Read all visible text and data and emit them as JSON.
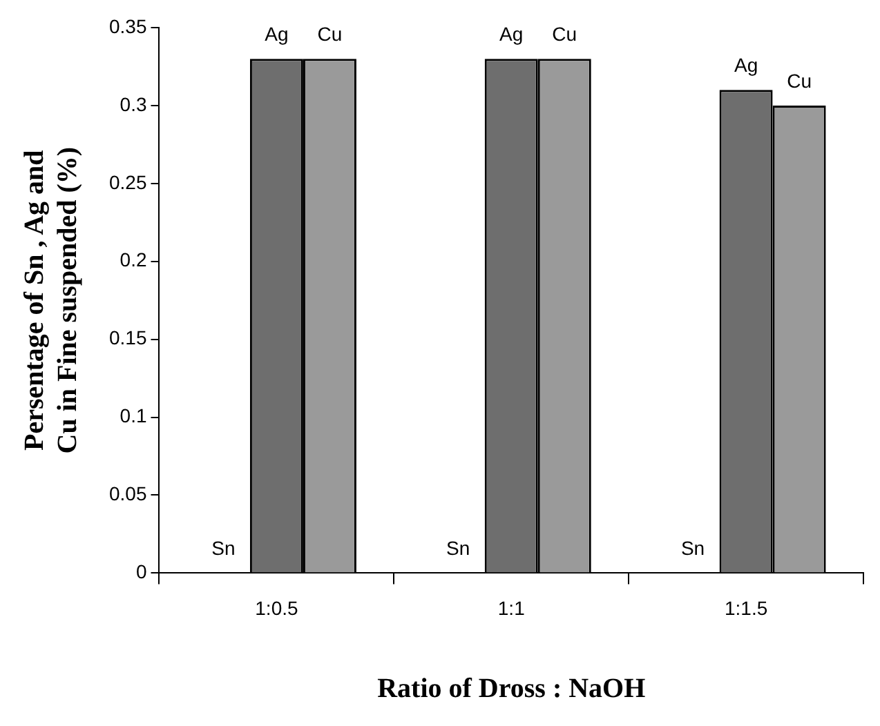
{
  "chart_data": {
    "type": "bar",
    "xlabel": "Ratio of Dross : NaOH",
    "ylabel": "Persentage of Sn , Ag and Cu in Fine suspended (%)",
    "categories": [
      "1:0.5",
      "1:1",
      "1:1.5"
    ],
    "series": [
      {
        "name": "Sn",
        "values": [
          0,
          0,
          0
        ]
      },
      {
        "name": "Ag",
        "color": "#6e6e6e",
        "values": [
          0.33,
          0.33,
          0.31
        ]
      },
      {
        "name": "Cu",
        "color": "#9a9a9a",
        "values": [
          0.33,
          0.33,
          0.3
        ]
      }
    ],
    "ylim": [
      0,
      0.35
    ],
    "yticks": [
      0,
      0.05,
      0.1,
      0.15,
      0.2,
      0.25,
      0.3,
      0.35
    ],
    "grid": false,
    "legend": false
  }
}
